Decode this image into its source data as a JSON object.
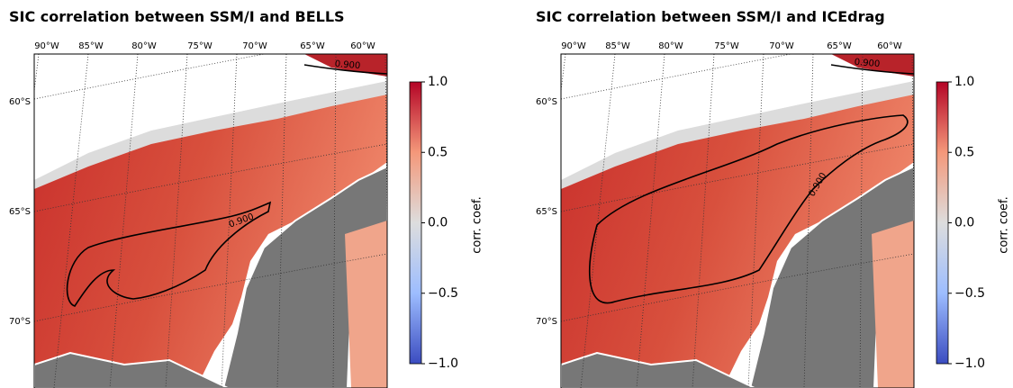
{
  "panels": [
    {
      "title": "SIC correlation between SSM/I and BELLS",
      "lon_labels": [
        "90°W",
        "85°W",
        "80°W",
        "75°W",
        "70°W",
        "65°W",
        "60°W"
      ],
      "lat_labels": [
        "60°S",
        "65°S",
        "70°S"
      ],
      "contour_labels": [
        "0.900",
        "0.900"
      ],
      "colorbar": {
        "label": "corr. coef.",
        "range": [
          -1,
          1
        ],
        "ticks": [
          {
            "value": 1,
            "label": "1.0"
          },
          {
            "value": 0.5,
            "label": "0.5"
          },
          {
            "value": 0,
            "label": "0.0"
          },
          {
            "value": -0.5,
            "label": "−0.5"
          },
          {
            "value": -1,
            "label": "−1.0"
          }
        ]
      }
    },
    {
      "title": "SIC correlation between SSM/I and ICEdrag",
      "lon_labels": [
        "90°W",
        "85°W",
        "80°W",
        "75°W",
        "70°W",
        "65°W",
        "60°W"
      ],
      "lat_labels": [
        "60°S",
        "65°S",
        "70°S"
      ],
      "contour_labels": [
        "0.900",
        "0.900"
      ],
      "colorbar": {
        "label": "corr. coef.",
        "range": [
          -1,
          1
        ],
        "ticks": [
          {
            "value": 1,
            "label": "1.0"
          },
          {
            "value": 0.5,
            "label": "0.5"
          },
          {
            "value": 0,
            "label": "0.0"
          },
          {
            "value": -0.5,
            "label": "−0.5"
          },
          {
            "value": -1,
            "label": "−1.0"
          }
        ]
      }
    }
  ]
}
